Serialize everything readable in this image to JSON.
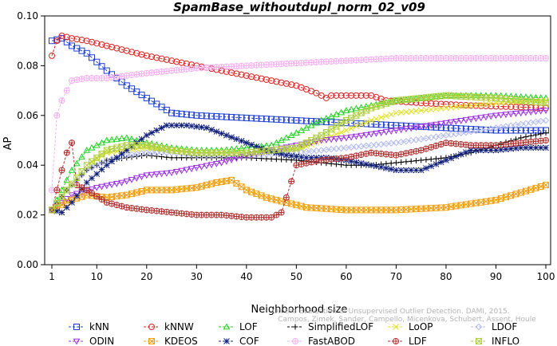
{
  "chart_data": {
    "type": "line",
    "title": "SpamBase_withoutdupl_norm_02_v09",
    "xlabel": "Neighborhood size",
    "ylabel": "AP",
    "xlim": [
      1,
      100
    ],
    "ylim": [
      0.0,
      0.1
    ],
    "x_ticks": [
      "1",
      "10",
      "20",
      "30",
      "40",
      "50",
      "60",
      "70",
      "80",
      "90",
      "100"
    ],
    "y_ticks": [
      "0.00",
      "0.02",
      "0.04",
      "0.06",
      "0.08",
      "0.10"
    ],
    "grid": false,
    "legend_position": "bottom",
    "credit": "Campos, Zimek, Sander, Campello, Micenkova, Schubert, Assent, Houle",
    "credit_title": "On the Evaluation of Unsupervised Outlier Detection. DAMI, 2015.",
    "series": [
      {
        "name": "kNN",
        "color": "#1f3fd0",
        "marker": "square",
        "points": [
          [
            1,
            0.09
          ],
          [
            3,
            0.091
          ],
          [
            5,
            0.088
          ],
          [
            8,
            0.085
          ],
          [
            12,
            0.078
          ],
          [
            16,
            0.072
          ],
          [
            20,
            0.067
          ],
          [
            25,
            0.061
          ],
          [
            30,
            0.06
          ],
          [
            40,
            0.059
          ],
          [
            50,
            0.058
          ],
          [
            60,
            0.057
          ],
          [
            70,
            0.056
          ],
          [
            80,
            0.055
          ],
          [
            90,
            0.054
          ],
          [
            100,
            0.054
          ]
        ]
      },
      {
        "name": "kNNW",
        "color": "#e02020",
        "marker": "circle",
        "points": [
          [
            1,
            0.084
          ],
          [
            2,
            0.09
          ],
          [
            3,
            0.092
          ],
          [
            5,
            0.091
          ],
          [
            8,
            0.09
          ],
          [
            12,
            0.088
          ],
          [
            16,
            0.086
          ],
          [
            20,
            0.084
          ],
          [
            25,
            0.082
          ],
          [
            30,
            0.08
          ],
          [
            40,
            0.076
          ],
          [
            50,
            0.072
          ],
          [
            54,
            0.069
          ],
          [
            56,
            0.067
          ],
          [
            57,
            0.068
          ],
          [
            60,
            0.068
          ],
          [
            65,
            0.068
          ],
          [
            68,
            0.066
          ],
          [
            75,
            0.065
          ],
          [
            85,
            0.064
          ],
          [
            100,
            0.063
          ]
        ]
      },
      {
        "name": "LOF",
        "color": "#20d020",
        "marker": "triangle",
        "points": [
          [
            1,
            0.022
          ],
          [
            3,
            0.03
          ],
          [
            5,
            0.038
          ],
          [
            8,
            0.046
          ],
          [
            12,
            0.05
          ],
          [
            16,
            0.051
          ],
          [
            20,
            0.049
          ],
          [
            25,
            0.047
          ],
          [
            30,
            0.046
          ],
          [
            35,
            0.046
          ],
          [
            40,
            0.047
          ],
          [
            45,
            0.048
          ],
          [
            50,
            0.053
          ],
          [
            55,
            0.058
          ],
          [
            60,
            0.062
          ],
          [
            65,
            0.064
          ],
          [
            70,
            0.066
          ],
          [
            75,
            0.067
          ],
          [
            80,
            0.068
          ],
          [
            90,
            0.068
          ],
          [
            100,
            0.067
          ]
        ]
      },
      {
        "name": "SimplifiedLOF",
        "color": "#000000",
        "marker": "plus",
        "points": [
          [
            1,
            0.022
          ],
          [
            4,
            0.03
          ],
          [
            8,
            0.038
          ],
          [
            12,
            0.042
          ],
          [
            16,
            0.043
          ],
          [
            20,
            0.044
          ],
          [
            25,
            0.043
          ],
          [
            30,
            0.043
          ],
          [
            40,
            0.043
          ],
          [
            50,
            0.042
          ],
          [
            55,
            0.041
          ],
          [
            60,
            0.04
          ],
          [
            65,
            0.04
          ],
          [
            70,
            0.041
          ],
          [
            75,
            0.042
          ],
          [
            80,
            0.043
          ],
          [
            85,
            0.045
          ],
          [
            90,
            0.048
          ],
          [
            95,
            0.051
          ],
          [
            100,
            0.053
          ]
        ]
      },
      {
        "name": "LoOP",
        "color": "#e0e020",
        "marker": "x",
        "points": [
          [
            1,
            0.022
          ],
          [
            4,
            0.03
          ],
          [
            8,
            0.04
          ],
          [
            12,
            0.045
          ],
          [
            16,
            0.046
          ],
          [
            20,
            0.047
          ],
          [
            25,
            0.046
          ],
          [
            30,
            0.045
          ],
          [
            40,
            0.045
          ],
          [
            50,
            0.046
          ],
          [
            55,
            0.05
          ],
          [
            60,
            0.054
          ],
          [
            65,
            0.058
          ],
          [
            70,
            0.061
          ],
          [
            80,
            0.063
          ],
          [
            90,
            0.065
          ],
          [
            100,
            0.066
          ]
        ]
      },
      {
        "name": "LDOF",
        "color": "#b0b8f0",
        "marker": "diamond",
        "points": [
          [
            1,
            0.022
          ],
          [
            4,
            0.03
          ],
          [
            8,
            0.038
          ],
          [
            12,
            0.042
          ],
          [
            16,
            0.044
          ],
          [
            20,
            0.045
          ],
          [
            25,
            0.045
          ],
          [
            30,
            0.044
          ],
          [
            40,
            0.044
          ],
          [
            50,
            0.045
          ],
          [
            60,
            0.047
          ],
          [
            70,
            0.049
          ],
          [
            80,
            0.052
          ],
          [
            90,
            0.055
          ],
          [
            100,
            0.058
          ]
        ]
      },
      {
        "name": "ODIN",
        "color": "#9a30e0",
        "marker": "triangle-down",
        "points": [
          [
            1,
            0.022
          ],
          [
            5,
            0.028
          ],
          [
            10,
            0.031
          ],
          [
            15,
            0.033
          ],
          [
            20,
            0.036
          ],
          [
            25,
            0.037
          ],
          [
            30,
            0.039
          ],
          [
            35,
            0.041
          ],
          [
            40,
            0.044
          ],
          [
            45,
            0.046
          ],
          [
            50,
            0.048
          ],
          [
            55,
            0.05
          ],
          [
            60,
            0.051
          ],
          [
            70,
            0.054
          ],
          [
            80,
            0.057
          ],
          [
            90,
            0.06
          ],
          [
            100,
            0.062
          ]
        ]
      },
      {
        "name": "KDEOS",
        "color": "#f0a010",
        "marker": "square-x",
        "points": [
          [
            1,
            0.022
          ],
          [
            5,
            0.026
          ],
          [
            8,
            0.028
          ],
          [
            12,
            0.027
          ],
          [
            16,
            0.028
          ],
          [
            20,
            0.03
          ],
          [
            25,
            0.03
          ],
          [
            30,
            0.031
          ],
          [
            34,
            0.033
          ],
          [
            37,
            0.034
          ],
          [
            40,
            0.03
          ],
          [
            44,
            0.027
          ],
          [
            48,
            0.025
          ],
          [
            52,
            0.023
          ],
          [
            60,
            0.022
          ],
          [
            70,
            0.022
          ],
          [
            80,
            0.023
          ],
          [
            90,
            0.026
          ],
          [
            100,
            0.032
          ]
        ]
      },
      {
        "name": "COF",
        "color": "#10207a",
        "marker": "star",
        "points": [
          [
            1,
            0.022
          ],
          [
            3,
            0.021
          ],
          [
            5,
            0.025
          ],
          [
            8,
            0.033
          ],
          [
            12,
            0.04
          ],
          [
            16,
            0.046
          ],
          [
            20,
            0.052
          ],
          [
            24,
            0.056
          ],
          [
            28,
            0.056
          ],
          [
            32,
            0.055
          ],
          [
            36,
            0.052
          ],
          [
            40,
            0.049
          ],
          [
            44,
            0.046
          ],
          [
            48,
            0.044
          ],
          [
            52,
            0.043
          ],
          [
            56,
            0.043
          ],
          [
            60,
            0.042
          ],
          [
            65,
            0.04
          ],
          [
            70,
            0.038
          ],
          [
            75,
            0.038
          ],
          [
            80,
            0.042
          ],
          [
            85,
            0.046
          ],
          [
            90,
            0.046
          ],
          [
            95,
            0.047
          ],
          [
            100,
            0.047
          ]
        ]
      },
      {
        "name": "FastABOD",
        "color": "#f5b0f0",
        "marker": "circle-plus",
        "points": [
          [
            1,
            0.03
          ],
          [
            2,
            0.06
          ],
          [
            3,
            0.066
          ],
          [
            5,
            0.074
          ],
          [
            8,
            0.075
          ],
          [
            12,
            0.075
          ],
          [
            16,
            0.076
          ],
          [
            20,
            0.077
          ],
          [
            25,
            0.078
          ],
          [
            30,
            0.079
          ],
          [
            40,
            0.08
          ],
          [
            50,
            0.081
          ],
          [
            60,
            0.082
          ],
          [
            70,
            0.083
          ],
          [
            80,
            0.083
          ],
          [
            90,
            0.083
          ],
          [
            100,
            0.083
          ]
        ]
      },
      {
        "name": "LDF",
        "color": "#b03030",
        "marker": "circle-plus",
        "points": [
          [
            1,
            0.022
          ],
          [
            2,
            0.03
          ],
          [
            3,
            0.038
          ],
          [
            4,
            0.045
          ],
          [
            5,
            0.049
          ],
          [
            6,
            0.032
          ],
          [
            8,
            0.03
          ],
          [
            12,
            0.025
          ],
          [
            16,
            0.023
          ],
          [
            20,
            0.022
          ],
          [
            25,
            0.021
          ],
          [
            30,
            0.02
          ],
          [
            35,
            0.02
          ],
          [
            40,
            0.019
          ],
          [
            45,
            0.019
          ],
          [
            47,
            0.021
          ],
          [
            48,
            0.027
          ],
          [
            50,
            0.04
          ],
          [
            55,
            0.042
          ],
          [
            60,
            0.043
          ],
          [
            65,
            0.045
          ],
          [
            70,
            0.044
          ],
          [
            75,
            0.046
          ],
          [
            80,
            0.049
          ],
          [
            85,
            0.048
          ],
          [
            90,
            0.048
          ],
          [
            95,
            0.049
          ],
          [
            100,
            0.05
          ]
        ]
      },
      {
        "name": "INFLO",
        "color": "#b0d040",
        "marker": "hourglass",
        "points": [
          [
            1,
            0.022
          ],
          [
            4,
            0.03
          ],
          [
            8,
            0.04
          ],
          [
            12,
            0.046
          ],
          [
            16,
            0.048
          ],
          [
            20,
            0.048
          ],
          [
            25,
            0.046
          ],
          [
            30,
            0.045
          ],
          [
            40,
            0.045
          ],
          [
            50,
            0.047
          ],
          [
            55,
            0.052
          ],
          [
            60,
            0.058
          ],
          [
            65,
            0.063
          ],
          [
            70,
            0.066
          ],
          [
            75,
            0.067
          ],
          [
            80,
            0.068
          ],
          [
            90,
            0.067
          ],
          [
            100,
            0.065
          ]
        ]
      }
    ]
  }
}
